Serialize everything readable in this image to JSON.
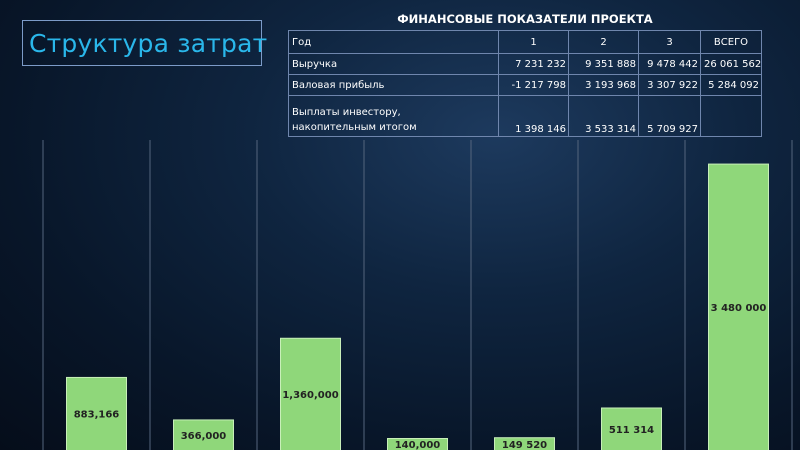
{
  "slide_title": "Структура затрат",
  "financials": {
    "title": "ФИНАНСОВЫЕ ПОКАЗАТЕЛИ ПРОЕКТА",
    "header": [
      "Год",
      "1",
      "2",
      "3",
      "ВСЕГО"
    ],
    "rows": [
      {
        "label": "Выручка",
        "values": [
          "7 231 232",
          "9 351 888",
          "9 478 442",
          "26 061 562"
        ]
      },
      {
        "label": "Валовая прибыль",
        "values": [
          "-1 217 798",
          "3 193 968",
          "3 307 922",
          "5 284 092"
        ]
      },
      {
        "label_line1": "Выплаты инвестору,",
        "label_line2": "накопительным итогом",
        "values": [
          "1 398 146",
          "3 533 314",
          "5 709 927",
          ""
        ]
      }
    ]
  },
  "chart_data": {
    "type": "bar",
    "title": "",
    "xlabel": "",
    "ylabel": "",
    "categories": [
      "",
      "",
      "",
      "",
      "",
      "",
      ""
    ],
    "values": [
      883166,
      366000,
      1360000,
      140000,
      149520,
      511314,
      3480000
    ],
    "data_labels": [
      "883,166",
      "366,000",
      "1,360,000",
      "140,000",
      "149 520",
      "511 314",
      "3 480 000"
    ],
    "bar_color": "#8fd77a",
    "gridlines": "vertical",
    "ylim": [
      0,
      3700000
    ]
  }
}
